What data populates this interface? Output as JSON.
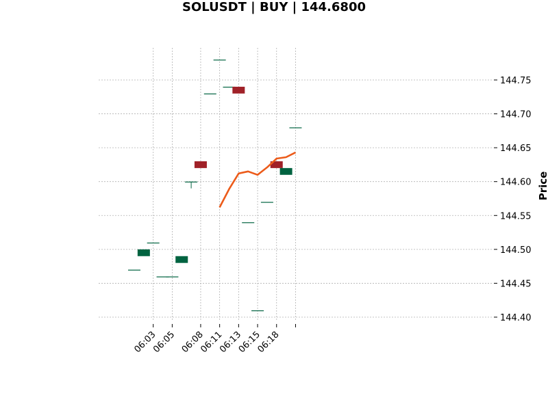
{
  "chart_data": {
    "type": "candlestick",
    "title": "SOLUSDT | BUY | 144.6800",
    "ylabel": "Price",
    "xlabel": "",
    "ylim": [
      144.395,
      144.8
    ],
    "y_ticks": [
      144.4,
      144.45,
      144.5,
      144.55,
      144.6,
      144.65,
      144.7,
      144.75
    ],
    "y_tick_labels": [
      "144.40",
      "144.45",
      "144.50",
      "144.55",
      "144.60",
      "144.65",
      "144.70",
      "144.75"
    ],
    "x_tick_labels": [
      "06:03",
      "06:05",
      "06:08",
      "06:11",
      "06:13",
      "06:15",
      "06:18",
      ""
    ],
    "x_tick_candle_index": [
      2,
      4,
      7,
      9,
      11,
      13,
      15,
      17
    ],
    "grid": true,
    "y_axis_side": "right",
    "colors": {
      "up": "#006340",
      "down": "#a02128",
      "line": "#ec5b1a",
      "grid": "#b0b0b0"
    },
    "candles": [
      {
        "open": 144.47,
        "high": 144.47,
        "low": 144.47,
        "close": 144.47
      },
      {
        "open": 144.49,
        "high": 144.5,
        "low": 144.49,
        "close": 144.5
      },
      {
        "open": 144.51,
        "high": 144.51,
        "low": 144.51,
        "close": 144.51
      },
      {
        "open": 144.46,
        "high": 144.46,
        "low": 144.46,
        "close": 144.46
      },
      {
        "open": 144.46,
        "high": 144.46,
        "low": 144.46,
        "close": 144.46
      },
      {
        "open": 144.48,
        "high": 144.49,
        "low": 144.48,
        "close": 144.49
      },
      {
        "open": 144.6,
        "high": 144.6,
        "low": 144.59,
        "close": 144.6
      },
      {
        "open": 144.63,
        "high": 144.63,
        "low": 144.62,
        "close": 144.62
      },
      {
        "open": 144.73,
        "high": 144.73,
        "low": 144.73,
        "close": 144.73
      },
      {
        "open": 144.78,
        "high": 144.78,
        "low": 144.78,
        "close": 144.78
      },
      {
        "open": 144.74,
        "high": 144.74,
        "low": 144.74,
        "close": 144.74
      },
      {
        "open": 144.74,
        "high": 144.74,
        "low": 144.73,
        "close": 144.73
      },
      {
        "open": 144.54,
        "high": 144.54,
        "low": 144.54,
        "close": 144.54
      },
      {
        "open": 144.41,
        "high": 144.41,
        "low": 144.41,
        "close": 144.41
      },
      {
        "open": 144.57,
        "high": 144.57,
        "low": 144.57,
        "close": 144.57
      },
      {
        "open": 144.63,
        "high": 144.63,
        "low": 144.62,
        "close": 144.62
      },
      {
        "open": 144.61,
        "high": 144.62,
        "low": 144.61,
        "close": 144.62
      },
      {
        "open": 144.68,
        "high": 144.68,
        "low": 144.68,
        "close": 144.68
      }
    ],
    "series": [
      {
        "x_index": [
          9,
          10,
          11,
          12,
          13,
          14,
          15,
          16,
          17
        ],
        "values": [
          144.562,
          144.589,
          144.612,
          144.615,
          144.61,
          144.621,
          144.634,
          144.636,
          144.643
        ]
      }
    ]
  }
}
